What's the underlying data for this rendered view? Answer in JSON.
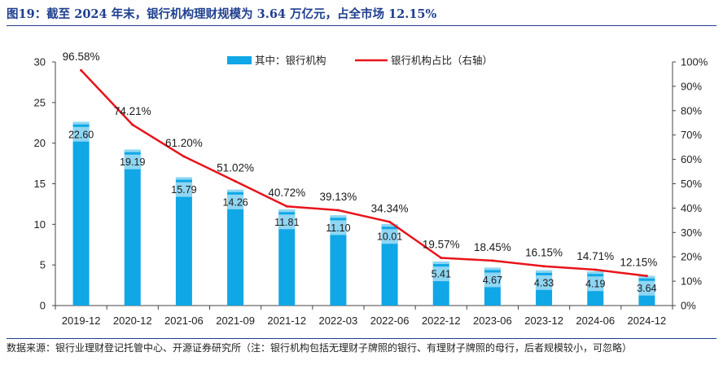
{
  "title": "图19：截至 2024 年末，银行机构理财规模为 3.64 万亿元，占全市场 12.15%",
  "source_note": "数据来源：银行业理财登记托管中心、开源证券研究所（注：银行机构包括无理财子牌照的银行、有理财子牌照的母行，后者规模较小，可忽略）",
  "colors": {
    "bar": "#0fa7e6",
    "bar_highlight": "#8fd6f3",
    "line": "#e8141b",
    "title": "#1f3f8f"
  },
  "chart_data": {
    "type": "bar",
    "title": "图19：截至 2024 年末，银行机构理财规模为 3.64 万亿元，占全市场 12.15%",
    "categories": [
      "2019-12",
      "2020-12",
      "2021-06",
      "2021-09",
      "2021-12",
      "2022-03",
      "2022-06",
      "2022-12",
      "2023-06",
      "2023-12",
      "2024-06",
      "2024-12"
    ],
    "series": [
      {
        "name": "其中：银行机构",
        "type": "bar",
        "axis": "left",
        "values": [
          22.6,
          19.19,
          15.79,
          14.26,
          11.81,
          11.1,
          10.01,
          5.41,
          4.67,
          4.33,
          4.19,
          3.64
        ],
        "labels": [
          "22.60",
          "19.19",
          "15.79",
          "14.26",
          "11.81",
          "11.10",
          "10.01",
          "5.41",
          "4.67",
          "4.33",
          "4.19",
          "3.64"
        ]
      },
      {
        "name": "银行机构占比（右轴）",
        "type": "line",
        "axis": "right",
        "values": [
          96.58,
          74.21,
          61.2,
          51.02,
          40.72,
          39.13,
          34.34,
          19.57,
          18.45,
          16.15,
          14.71,
          12.15
        ],
        "labels": [
          "96.58%",
          "74.21%",
          "61.20%",
          "51.02%",
          "40.72%",
          "39.13%",
          "34.34%",
          "19.57%",
          "18.45%",
          "16.15%",
          "14.71%",
          "12.15%"
        ]
      }
    ],
    "ylim": [
      0,
      30
    ],
    "yticks": [
      "0",
      "5",
      "10",
      "15",
      "20",
      "25",
      "30"
    ],
    "y2lim": [
      0,
      100
    ],
    "y2ticks": [
      "0%",
      "10%",
      "20%",
      "30%",
      "40%",
      "50%",
      "60%",
      "70%",
      "80%",
      "90%",
      "100%"
    ],
    "legend_position": "top-center",
    "grid": false
  }
}
